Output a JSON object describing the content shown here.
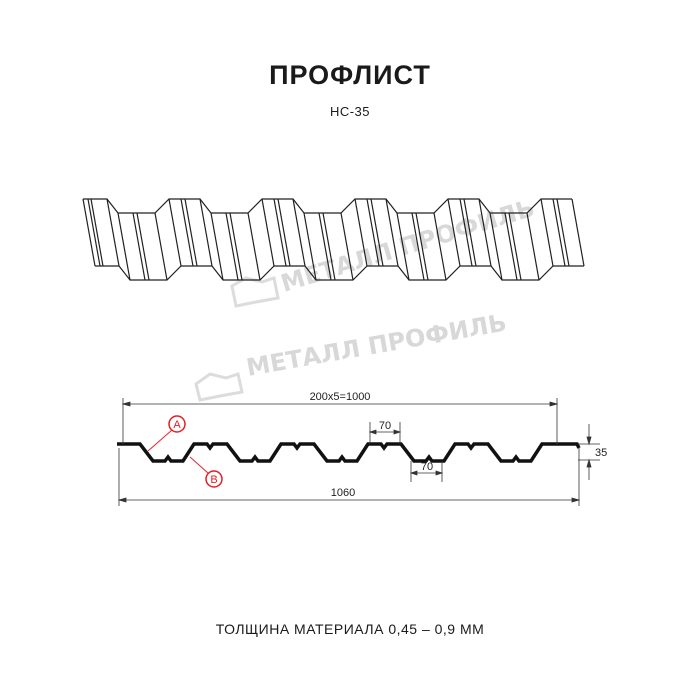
{
  "title": "ПРОФЛИСТ",
  "subtitle": "НС-35",
  "watermark": "МЕТАЛЛ ПРОФИЛЬ",
  "dimensions": {
    "overall_pitch": "200x5=1000",
    "top_flange": "70",
    "bottom_flange": "70",
    "height": "35",
    "total_width": "1060"
  },
  "callouts": {
    "a": "A",
    "b": "B"
  },
  "callout_color": "#e31e24",
  "footer": "ТОЛЩИНА МАТЕРИАЛА 0,45 – 0,9 ММ"
}
